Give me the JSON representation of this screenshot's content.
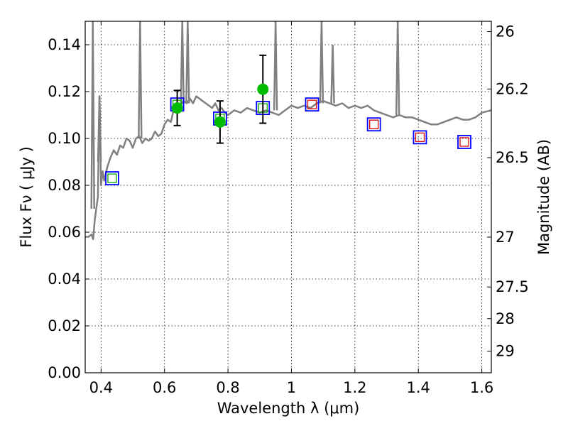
{
  "chart_data": {
    "type": "scatter",
    "xlabel": "Wavelength  λ (μm)",
    "ylabel": "Flux  Fν  ( μJy )",
    "ylabel_right": "Magnitude (AB)",
    "xlim": [
      0.35,
      1.63
    ],
    "ylim": [
      0.0,
      0.15
    ],
    "grid": true,
    "x_ticks": [
      0.4,
      0.6,
      0.8,
      1.0,
      1.2,
      1.4,
      1.6
    ],
    "x_tick_labels": [
      "0.4",
      "0.6",
      "0.8",
      "1",
      "1.2",
      "1.4",
      "1.6"
    ],
    "y_ticks": [
      0.0,
      0.02,
      0.04,
      0.06,
      0.08,
      0.1,
      0.12,
      0.14
    ],
    "y_tick_labels": [
      "0.00",
      "0.02",
      "0.04",
      "0.06",
      "0.08",
      "0.10",
      "0.12",
      "0.14"
    ],
    "right_ticks": [
      {
        "label": "26",
        "flux": 0.1456
      },
      {
        "label": "26.2",
        "flux": 0.1211
      },
      {
        "label": "26.5",
        "flux": 0.0918
      },
      {
        "label": "27",
        "flux": 0.0579
      },
      {
        "label": "27.5",
        "flux": 0.0366
      },
      {
        "label": "28",
        "flux": 0.0231
      },
      {
        "label": "29",
        "flux": 0.0092
      }
    ],
    "series": [
      {
        "kind": "line",
        "color": "#808080",
        "x": [
          0.35,
          0.36,
          0.37,
          0.375,
          0.38,
          0.385,
          0.39,
          0.395,
          0.4,
          0.405,
          0.41,
          0.42,
          0.43,
          0.44,
          0.45,
          0.46,
          0.47,
          0.48,
          0.49,
          0.5,
          0.51,
          0.52,
          0.53,
          0.54,
          0.55,
          0.56,
          0.57,
          0.58,
          0.59,
          0.6,
          0.61,
          0.62,
          0.63,
          0.64,
          0.65,
          0.66,
          0.67,
          0.68,
          0.69,
          0.7,
          0.71,
          0.72,
          0.73,
          0.74,
          0.75,
          0.76,
          0.77,
          0.78,
          0.79,
          0.8,
          0.82,
          0.84,
          0.86,
          0.88,
          0.9,
          0.92,
          0.94,
          0.96,
          0.98,
          1.0,
          1.02,
          1.04,
          1.06,
          1.08,
          1.1,
          1.12,
          1.14,
          1.16,
          1.18,
          1.2,
          1.22,
          1.24,
          1.26,
          1.28,
          1.3,
          1.32,
          1.34,
          1.36,
          1.38,
          1.4,
          1.42,
          1.44,
          1.46,
          1.48,
          1.5,
          1.52,
          1.54,
          1.56,
          1.58,
          1.6,
          1.63
        ],
        "y": [
          0.058,
          0.058,
          0.059,
          0.057,
          0.065,
          0.07,
          0.075,
          0.118,
          0.08,
          0.086,
          0.082,
          0.088,
          0.092,
          0.095,
          0.093,
          0.097,
          0.096,
          0.1,
          0.099,
          0.096,
          0.1,
          0.101,
          0.098,
          0.1,
          0.099,
          0.1,
          0.103,
          0.101,
          0.102,
          0.106,
          0.108,
          0.107,
          0.113,
          0.112,
          0.114,
          0.116,
          0.115,
          0.117,
          0.115,
          0.118,
          0.117,
          0.116,
          0.115,
          0.114,
          0.113,
          0.115,
          0.112,
          0.113,
          0.111,
          0.11,
          0.112,
          0.111,
          0.113,
          0.112,
          0.111,
          0.112,
          0.111,
          0.11,
          0.112,
          0.114,
          0.113,
          0.114,
          0.113,
          0.115,
          0.116,
          0.115,
          0.114,
          0.115,
          0.113,
          0.114,
          0.113,
          0.114,
          0.112,
          0.111,
          0.11,
          0.109,
          0.11,
          0.109,
          0.109,
          0.108,
          0.107,
          0.106,
          0.106,
          0.107,
          0.108,
          0.109,
          0.108,
          0.108,
          0.109,
          0.111,
          0.112
        ]
      },
      {
        "kind": "emission_spikes",
        "color": "#808080",
        "peaks": [
          {
            "x": 0.374,
            "y": 0.07,
            "to": 0.15
          },
          {
            "x": 0.395,
            "y": 0.09,
            "to": 0.118
          },
          {
            "x": 0.523,
            "y": 0.1,
            "to": 0.15
          },
          {
            "x": 0.656,
            "y": 0.115,
            "to": 0.15
          },
          {
            "x": 0.673,
            "y": 0.115,
            "to": 0.15
          },
          {
            "x": 0.95,
            "y": 0.112,
            "to": 0.15
          },
          {
            "x": 1.095,
            "y": 0.115,
            "to": 0.15
          },
          {
            "x": 1.13,
            "y": 0.115,
            "to": 0.14
          },
          {
            "x": 1.335,
            "y": 0.11,
            "to": 0.15
          }
        ]
      },
      {
        "kind": "blue_squares",
        "color": "#0000ff",
        "x": [
          0.435,
          0.64,
          0.775,
          0.91,
          1.065,
          1.26,
          1.405,
          1.545
        ],
        "y": [
          0.083,
          0.1145,
          0.1085,
          0.113,
          0.1145,
          0.106,
          0.1005,
          0.0985
        ]
      },
      {
        "kind": "green_inner_squares",
        "color": "#00aa00",
        "x": [
          0.435,
          0.64,
          0.775,
          0.91
        ],
        "y": [
          0.083,
          0.1145,
          0.1085,
          0.113
        ]
      },
      {
        "kind": "red_inner_squares",
        "color": "#dd0000",
        "x": [
          1.065,
          1.26,
          1.405,
          1.545
        ],
        "y": [
          0.1145,
          0.106,
          0.1005,
          0.0985
        ]
      },
      {
        "kind": "green_points_with_errors",
        "color": "#00bb00",
        "x": [
          0.64,
          0.775,
          0.91
        ],
        "y": [
          0.113,
          0.107,
          0.121
        ],
        "yerr": [
          0.0075,
          0.009,
          0.0145
        ]
      }
    ]
  }
}
